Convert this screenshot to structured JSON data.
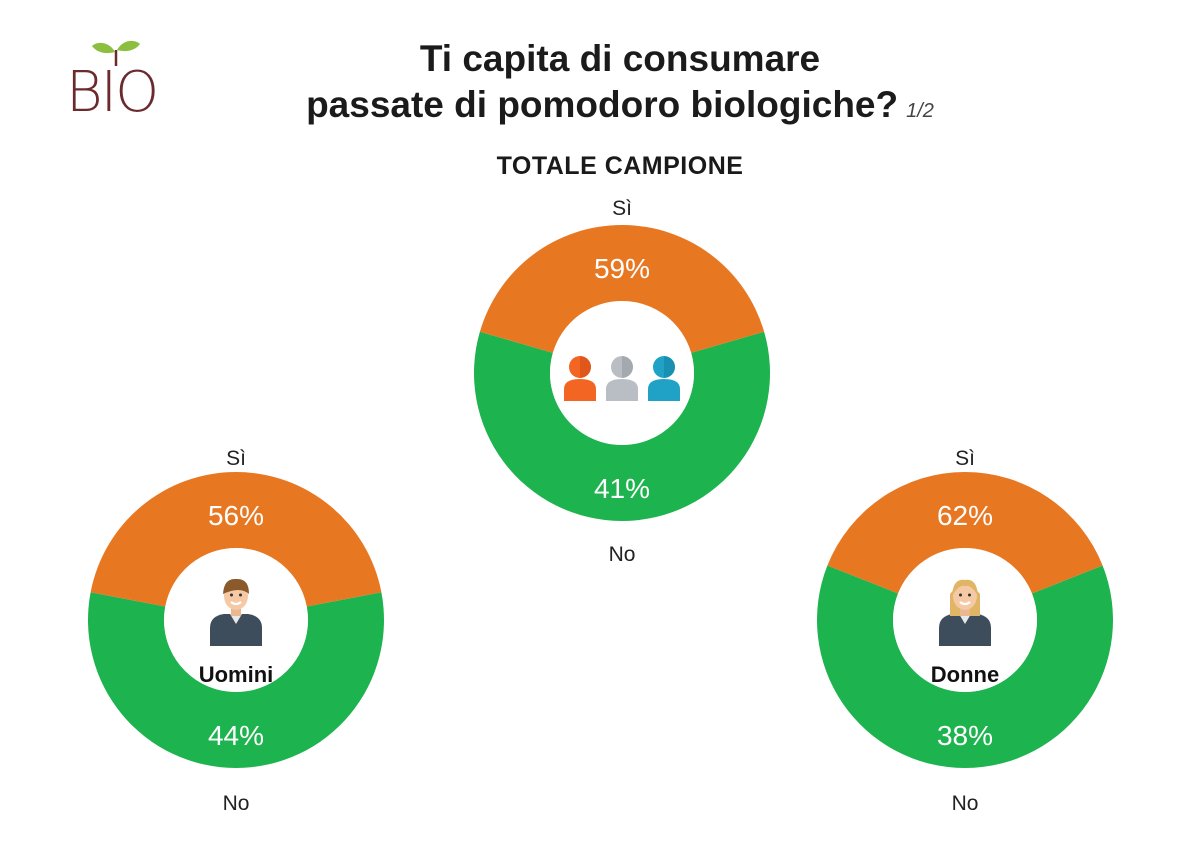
{
  "logo": {
    "text": "BIO"
  },
  "header": {
    "title_line1": "Ti capita di consumare",
    "title_line2": "passate di pomodoro biologiche?",
    "page_indicator": "1/2",
    "subtitle": "TOTALE CAMPIONE"
  },
  "colors": {
    "yes": "#1db34f",
    "no": "#e87722",
    "logo": "#6b2a2e",
    "leaf": "#8cbf3f"
  },
  "chart_data": [
    {
      "type": "pie",
      "id": "totale",
      "center_label": "",
      "center_icon": "group-people-icon",
      "series": [
        {
          "name": "Sì",
          "value": 59,
          "label": "59%"
        },
        {
          "name": "No",
          "value": 41,
          "label": "41%"
        }
      ]
    },
    {
      "type": "pie",
      "id": "uomini",
      "center_label": "Uomini",
      "center_icon": "man-avatar-icon",
      "series": [
        {
          "name": "Sì",
          "value": 56,
          "label": "56%"
        },
        {
          "name": "No",
          "value": 44,
          "label": "44%"
        }
      ]
    },
    {
      "type": "pie",
      "id": "donne",
      "center_label": "Donne",
      "center_icon": "woman-avatar-icon",
      "series": [
        {
          "name": "Sì",
          "value": 62,
          "label": "62%"
        },
        {
          "name": "No",
          "value": 38,
          "label": "38%"
        }
      ]
    }
  ]
}
